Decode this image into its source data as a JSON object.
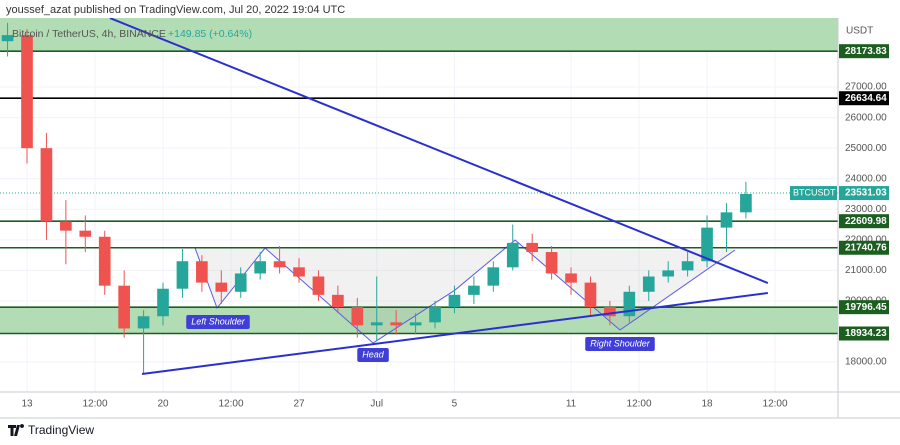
{
  "header": {
    "published": "youssef_azat published on TradingView.com, Jul 20, 2022 19:04 UTC",
    "logo": "TradingView"
  },
  "chart_data": {
    "type": "candlestick",
    "title": "Bitcoin / TetherUS, 4h, BINANCE",
    "change": "+149.85 (+0.64%)",
    "y_axis_label": "USDT",
    "up_color": "#26a69a",
    "down_color": "#ef5350",
    "x": [
      -1,
      0,
      1,
      2,
      3,
      4,
      5,
      6,
      7,
      8,
      9,
      10,
      11,
      12,
      13,
      14,
      15,
      16,
      17,
      18,
      19,
      20,
      21,
      22,
      23,
      24,
      25,
      26,
      27,
      28,
      29,
      30,
      31,
      32,
      33,
      34,
      35,
      36,
      37
    ],
    "open": [
      28500,
      28700,
      25000,
      22600,
      22300,
      22100,
      20500,
      19100,
      19500,
      20400,
      21300,
      20600,
      20300,
      20900,
      21300,
      21100,
      20800,
      20200,
      19800,
      19200,
      19300,
      19200,
      19300,
      19800,
      20200,
      20500,
      21100,
      21900,
      21600,
      20900,
      20600,
      19800,
      19500,
      20300,
      20800,
      21000,
      21300,
      22400,
      22900
    ],
    "high": [
      29100,
      28900,
      25500,
      23300,
      22800,
      22300,
      21000,
      19700,
      20600,
      21700,
      21500,
      21000,
      21100,
      21600,
      21800,
      21400,
      21000,
      20500,
      20100,
      20800,
      19700,
      19600,
      20000,
      20500,
      20800,
      21300,
      22500,
      22200,
      21800,
      21100,
      20800,
      20000,
      20500,
      21000,
      21300,
      21600,
      22800,
      23200,
      23900
    ],
    "low": [
      28000,
      24500,
      22000,
      21200,
      21600,
      20200,
      18800,
      17600,
      19200,
      20100,
      20300,
      19900,
      20100,
      20700,
      20900,
      20600,
      20000,
      19600,
      18800,
      18700,
      18900,
      18900,
      19100,
      19600,
      19900,
      20300,
      21000,
      21300,
      20700,
      20200,
      19500,
      19200,
      19300,
      20000,
      20600,
      20800,
      21100,
      21600,
      22700
    ],
    "close": [
      28700,
      25000,
      22600,
      22300,
      22100,
      20500,
      19100,
      19500,
      20400,
      21300,
      20600,
      20300,
      20900,
      21300,
      21100,
      20800,
      20200,
      19800,
      19200,
      19300,
      19200,
      19300,
      19800,
      20200,
      20500,
      21100,
      21900,
      21600,
      20900,
      20600,
      19800,
      19500,
      20300,
      20800,
      21000,
      21300,
      22400,
      22900,
      23500
    ],
    "xlim": [
      -1.39,
      41.74
    ],
    "xticks": [
      {
        "value": 0,
        "label": "13"
      },
      {
        "value": 3.5,
        "label": "12:00"
      },
      {
        "value": 7,
        "label": "20"
      },
      {
        "value": 10.5,
        "label": "12:00"
      },
      {
        "value": 14,
        "label": "27"
      },
      {
        "value": 18,
        "label": "Jul"
      },
      {
        "value": 22,
        "label": "5"
      },
      {
        "value": 28,
        "label": "11"
      },
      {
        "value": 31.5,
        "label": "12:00"
      },
      {
        "value": 35,
        "label": "18"
      },
      {
        "value": 38.5,
        "label": "12:00"
      }
    ],
    "ylim": [
      17020,
      29260
    ],
    "yticks": [
      {
        "value": 18000,
        "label": "18000.00"
      },
      {
        "value": 20000,
        "label": "20000.00"
      },
      {
        "value": 21000,
        "label": "21000.00"
      },
      {
        "value": 22000,
        "label": "22000.00"
      },
      {
        "value": 23000,
        "label": "23000.00"
      },
      {
        "value": 24000,
        "label": "24000.00"
      },
      {
        "value": 25000,
        "label": "25000.00"
      },
      {
        "value": 26000,
        "label": "26000.00"
      },
      {
        "value": 27000,
        "label": "27000.00"
      }
    ],
    "grid": true,
    "zones": [
      {
        "from": 28173.83,
        "to": 29260,
        "color": "#a5d6a7"
      },
      {
        "from": 18934.23,
        "to": 19796.45,
        "color": "#a5d6a7"
      }
    ],
    "levels": [
      {
        "value": 28173.83,
        "color": "#1b5e20"
      },
      {
        "value": 26634.64,
        "color": "#000000"
      },
      {
        "value": 22609.98,
        "color": "#1b5e20"
      },
      {
        "value": 21740.76,
        "color": "#1b5e20"
      },
      {
        "value": 19796.45,
        "color": "#1b5e20"
      },
      {
        "value": 18934.23,
        "color": "#1b5e20"
      }
    ],
    "last_price": {
      "name": "BTCUSDT",
      "value": 23531.03,
      "color": "#26a69a"
    },
    "trendlines": [
      {
        "x": [
          4.27,
          38.13
        ],
        "y": [
          29258,
          20586
        ],
        "color": "#2a2fd0"
      },
      {
        "x": [
          5.92,
          38.13
        ],
        "y": [
          17609,
          20259
        ],
        "color": "#2a2fd0"
      }
    ],
    "pattern": {
      "x": [
        8.65,
        9.78,
        12.25,
        17.81,
        22.03,
        25.12,
        30.52,
        36.44
      ],
      "y": [
        21732,
        19768,
        21732,
        18623,
        20357,
        21994,
        19048,
        21667
      ],
      "color": "#5c5ce6"
    },
    "annotations": [
      {
        "text": "Left Shoulder",
        "x": 9.83,
        "y": 19310
      },
      {
        "text": "Head",
        "x": 17.81,
        "y": 18230
      },
      {
        "text": "Right Shoulder",
        "x": 30.52,
        "y": 18590
      }
    ]
  }
}
